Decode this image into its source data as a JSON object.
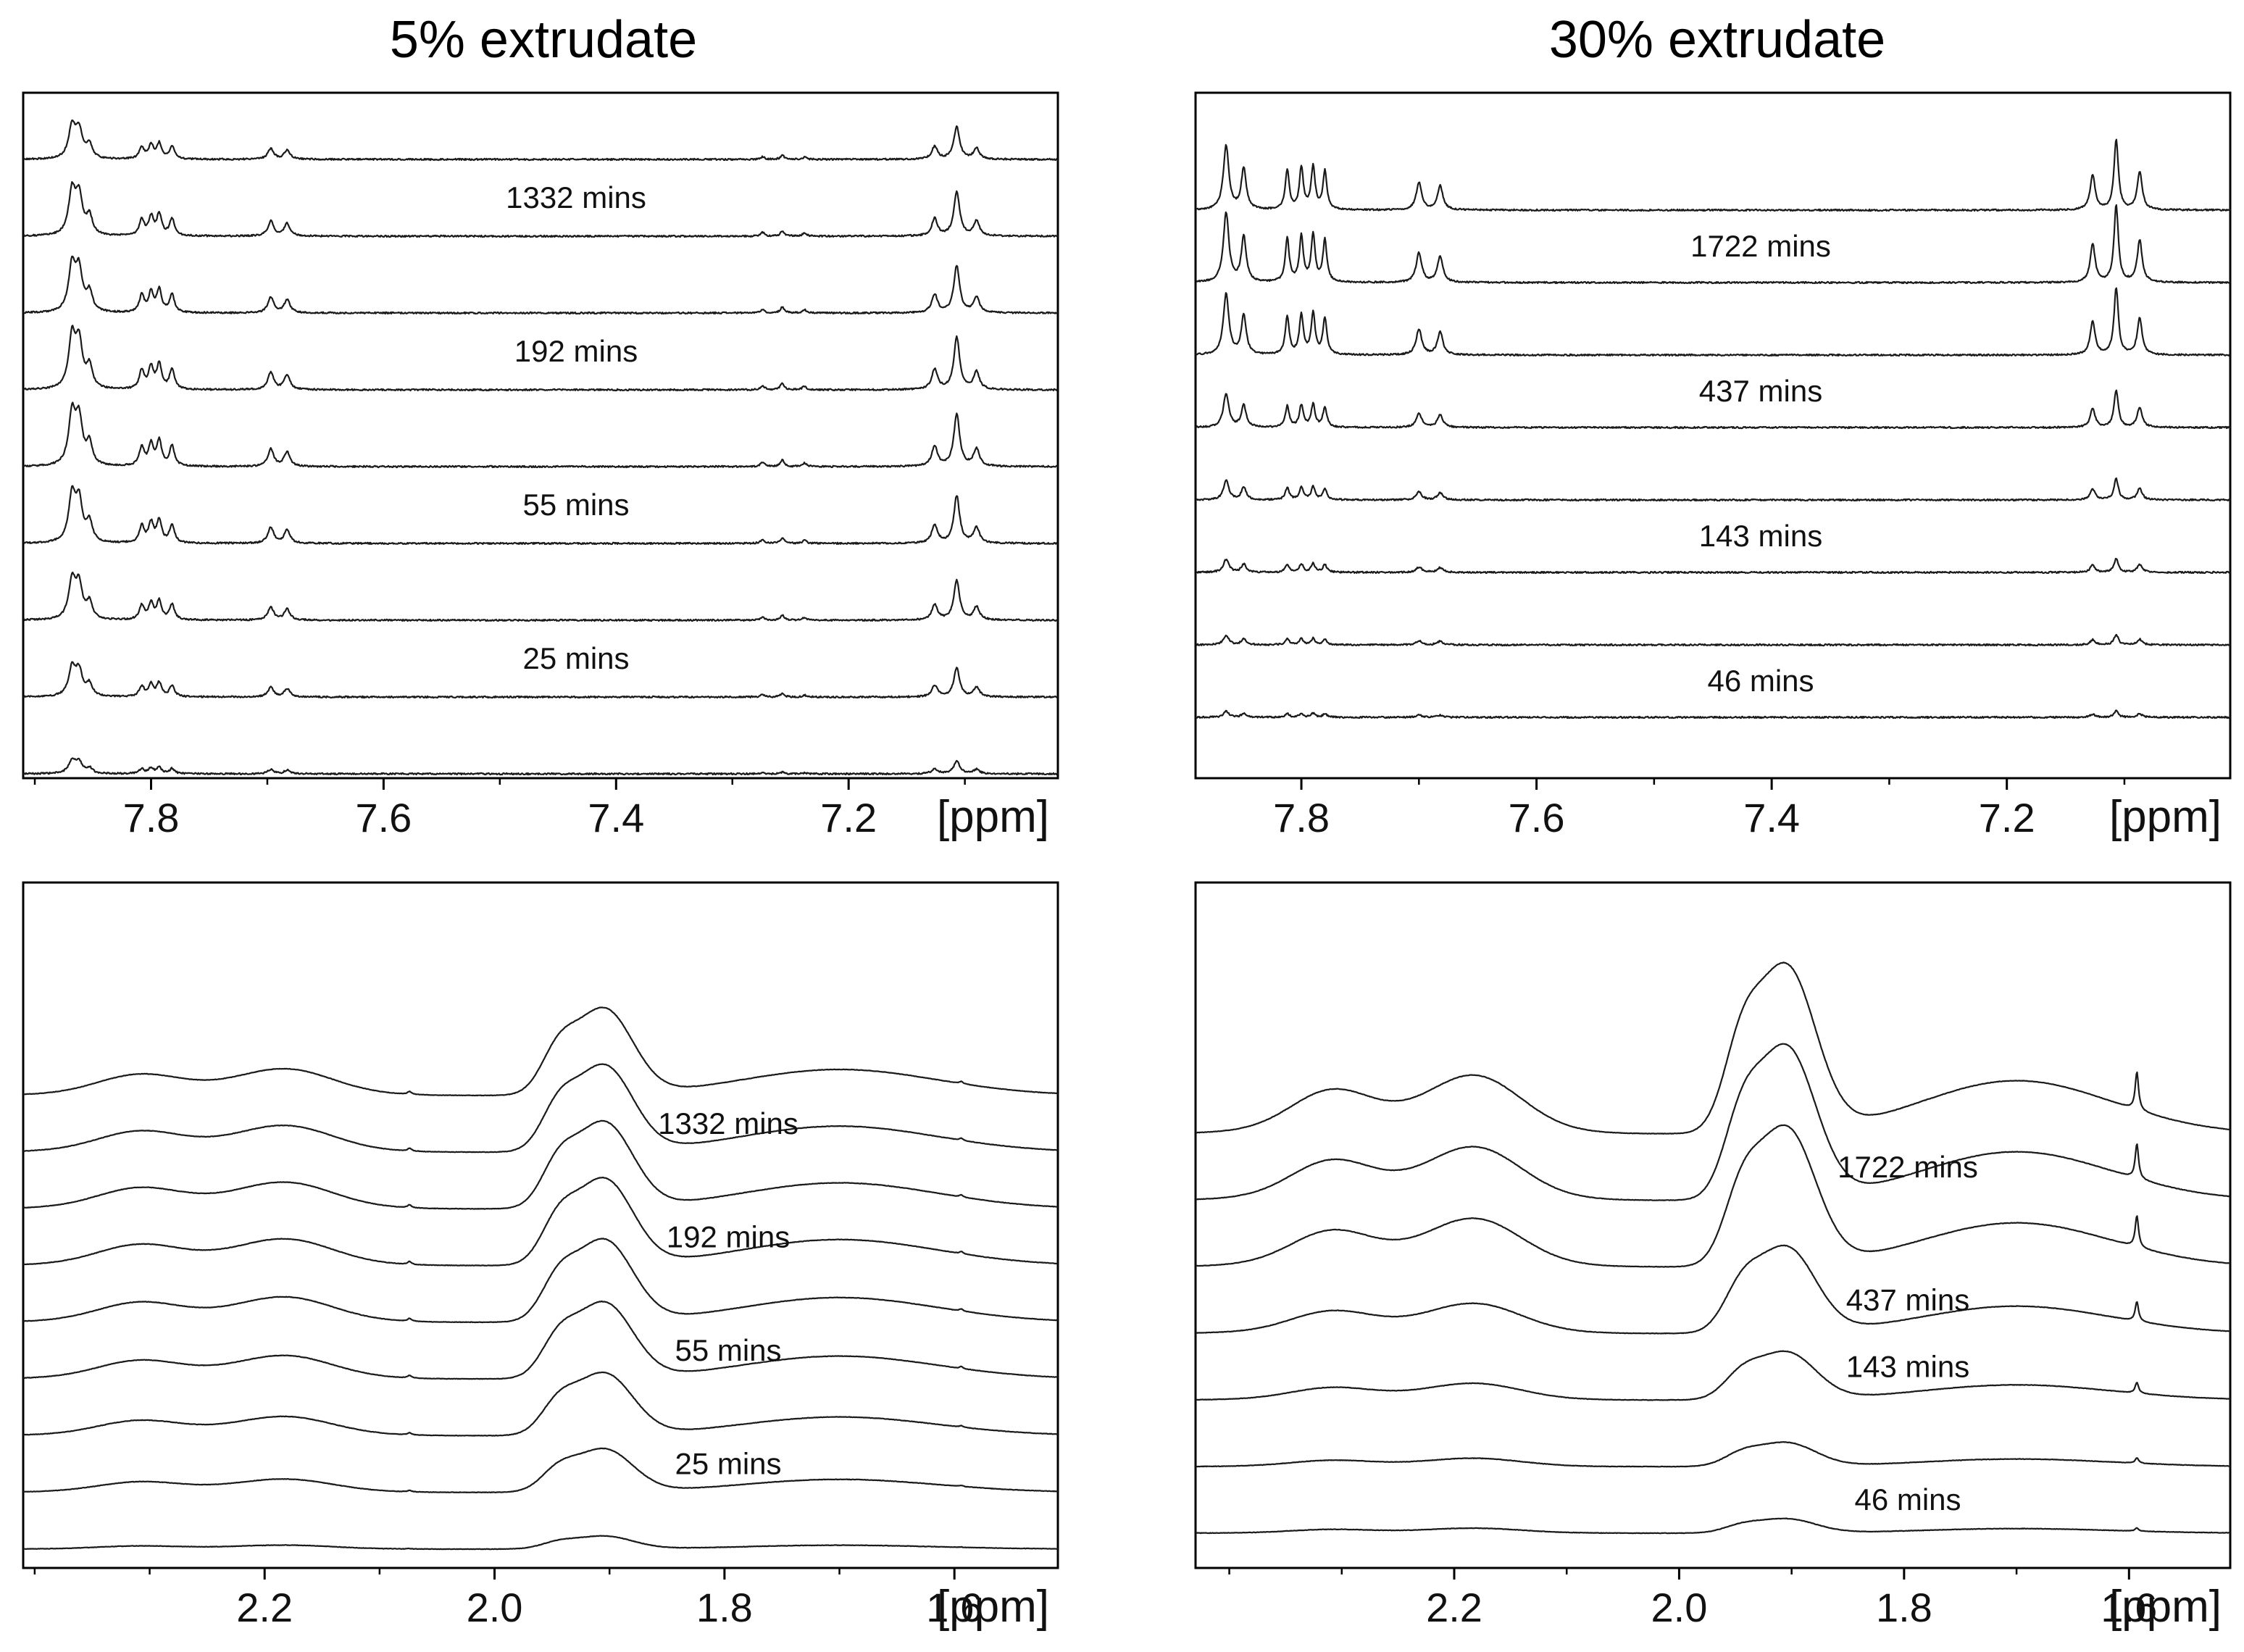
{
  "figure": {
    "left_title": "5% extrudate",
    "right_title": "30% extrudate"
  },
  "chart_data": [
    {
      "id": "p5_aromatic",
      "type": "line",
      "title": "5% extrudate",
      "xlabel": "[ppm]",
      "x_ticks": [
        7.8,
        7.6,
        7.4,
        7.2
      ],
      "tick_labels": [
        "7.8",
        "7.6",
        "7.4",
        "7.2"
      ],
      "xlim": [
        7.91,
        7.02
      ],
      "series_count": 9,
      "region": "aromatic",
      "profile": "ar5",
      "labels": [
        {
          "text": "1332 mins",
          "between": [
            7,
            8
          ]
        },
        {
          "text": "192 mins",
          "between": [
            5,
            6
          ]
        },
        {
          "text": "55 mins",
          "between": [
            3,
            4
          ]
        },
        {
          "text": "25 mins",
          "between": [
            1,
            2
          ]
        }
      ],
      "peak_scale": [
        0.25,
        0.55,
        0.75,
        0.9,
        1.0,
        1.0,
        0.9,
        0.85,
        0.62
      ]
    },
    {
      "id": "p30_aromatic",
      "type": "line",
      "title": "30% extrudate",
      "xlabel": "[ppm]",
      "x_ticks": [
        7.8,
        7.6,
        7.4,
        7.2
      ],
      "tick_labels": [
        "7.8",
        "7.6",
        "7.4",
        "7.2"
      ],
      "xlim": [
        7.89,
        7.01
      ],
      "series_count": 8,
      "region": "aromatic",
      "profile": "ar30",
      "labels": [
        {
          "text": "1722 mins",
          "between": [
            6,
            7
          ]
        },
        {
          "text": "437 mins",
          "between": [
            4,
            5
          ]
        },
        {
          "text": "143 mins",
          "between": [
            2,
            3
          ]
        },
        {
          "text": "46 mins",
          "between": [
            0,
            1
          ]
        }
      ],
      "peak_scale": [
        0.1,
        0.16,
        0.22,
        0.33,
        0.58,
        1.05,
        1.2,
        1.1
      ]
    },
    {
      "id": "p5_aliphatic",
      "type": "line",
      "xlabel": "[ppm]",
      "x_ticks": [
        2.2,
        2.0,
        1.8,
        1.6
      ],
      "tick_labels": [
        "2.2",
        "2.0",
        "1.8",
        "1.6"
      ],
      "xlim": [
        2.41,
        1.51
      ],
      "series_count": 9,
      "region": "aliphatic",
      "profile": "al5",
      "labels": [
        {
          "text": "1332 mins",
          "between": [
            7,
            8
          ]
        },
        {
          "text": "192 mins",
          "between": [
            5,
            6
          ]
        },
        {
          "text": "55 mins",
          "between": [
            3,
            4
          ]
        },
        {
          "text": "25 mins",
          "between": [
            1,
            2
          ]
        }
      ],
      "peak_scale": [
        0.15,
        0.5,
        0.72,
        0.88,
        0.95,
        1.0,
        1.0,
        1.0,
        1.0
      ]
    },
    {
      "id": "p30_aliphatic",
      "type": "line",
      "xlabel": "[ppm]",
      "x_ticks": [
        2.2,
        2.0,
        1.8,
        1.6
      ],
      "tick_labels": [
        "2.2",
        "2.0",
        "1.8",
        "1.6"
      ],
      "xlim": [
        2.43,
        1.51
      ],
      "series_count": 7,
      "region": "aliphatic",
      "profile": "al30",
      "labels": [
        {
          "text": "1722 mins",
          "between": [
            5,
            6
          ]
        },
        {
          "text": "437 mins",
          "between": [
            3,
            4
          ]
        },
        {
          "text": "143 mins",
          "between": [
            2,
            3
          ]
        },
        {
          "text": "46 mins",
          "between": [
            0,
            1
          ]
        }
      ],
      "peak_scale": [
        0.15,
        0.25,
        0.5,
        0.9,
        1.45,
        1.6,
        1.75
      ]
    }
  ]
}
